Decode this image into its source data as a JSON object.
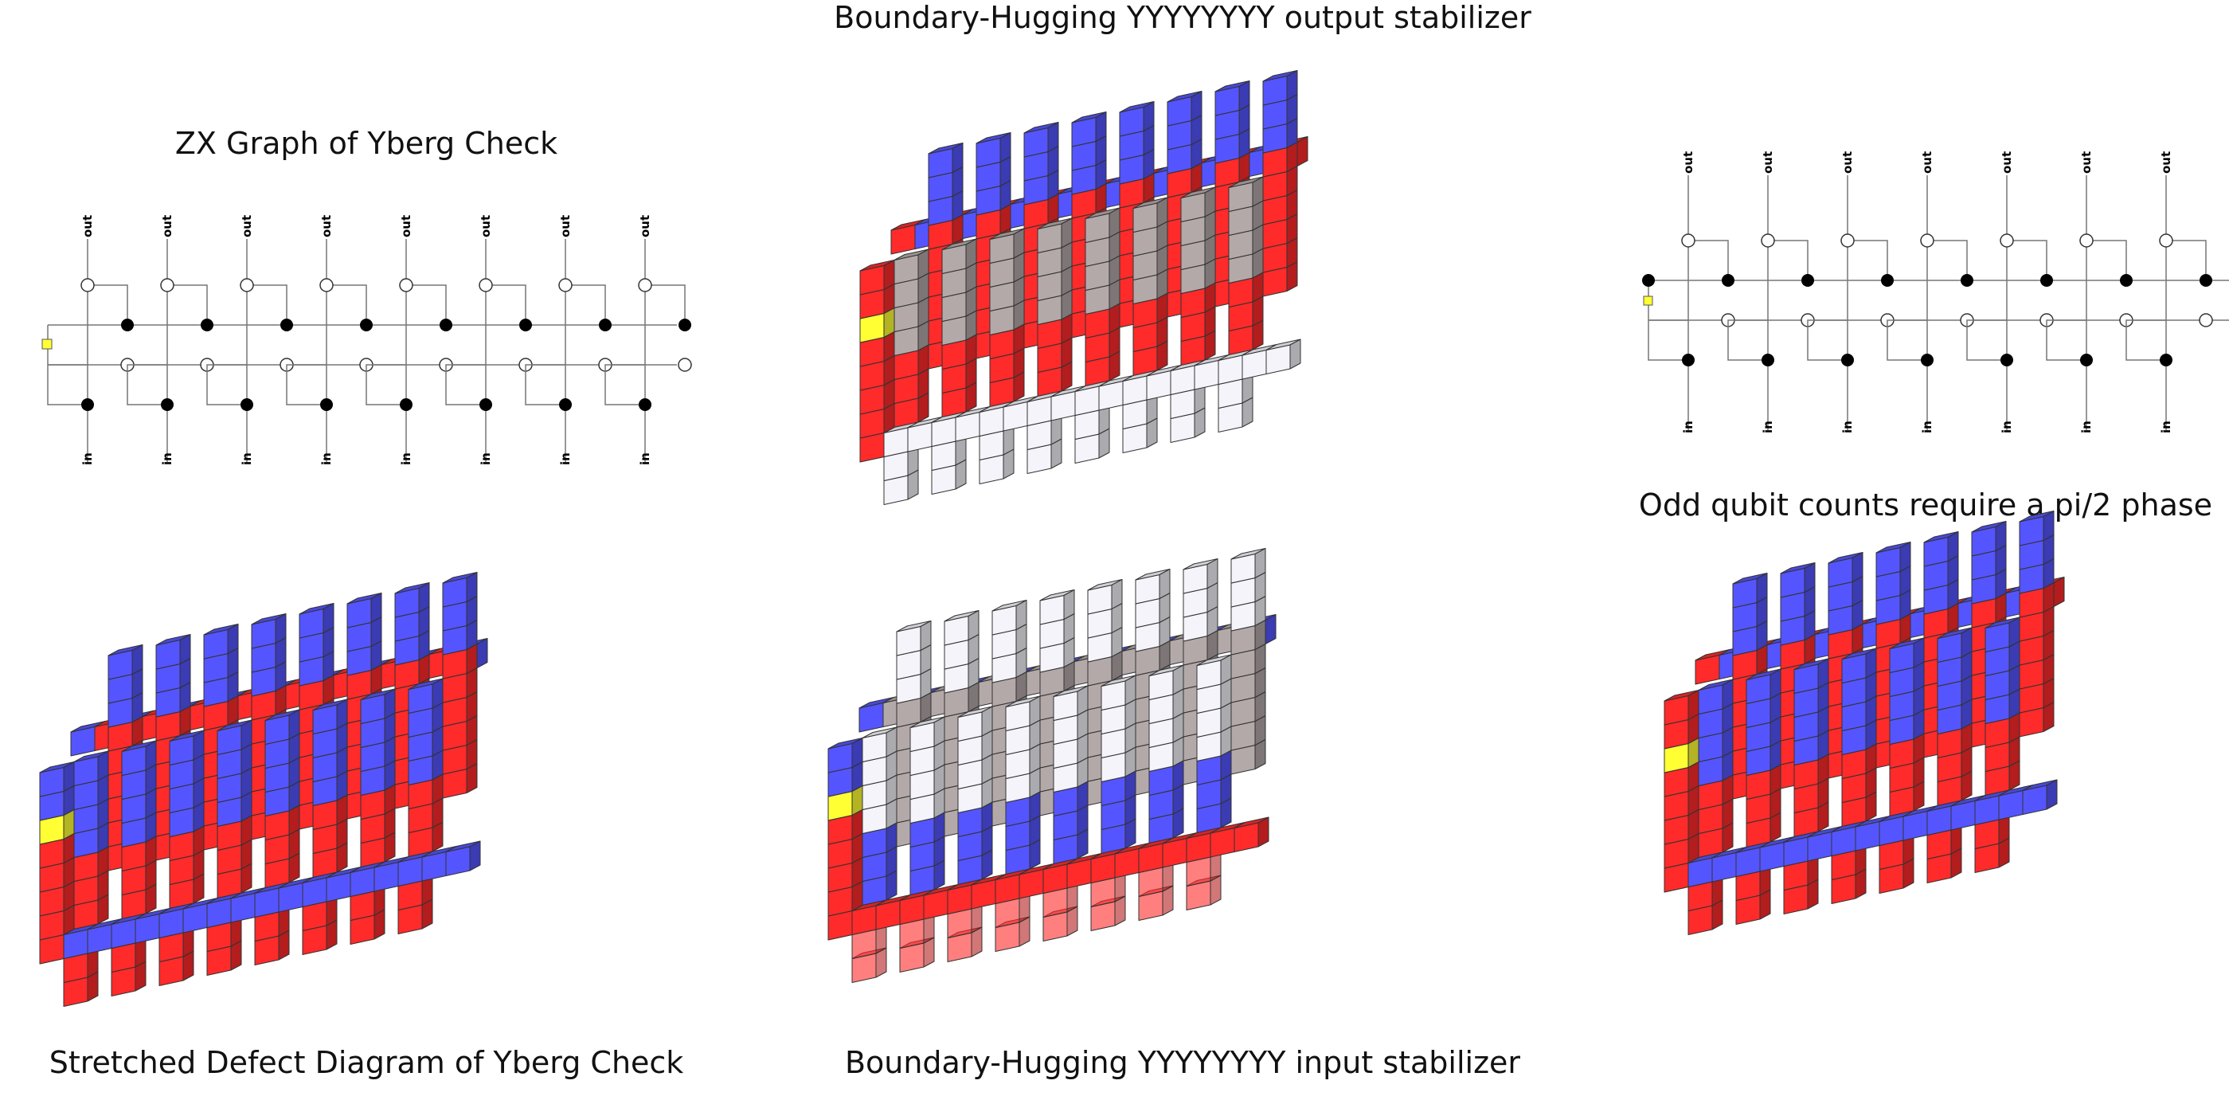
{
  "titles": {
    "zx_graph": "ZX Graph of Yberg Check",
    "output_stabilizer": "Boundary-Hugging YYYYYYYY output stabilizer",
    "odd_qubit": "Odd qubit counts require a pi/2 phase",
    "stretched_defect": "Stretched Defect Diagram of Yberg Check",
    "input_stabilizer": "Boundary-Hugging YYYYYYYY input stabilizer"
  },
  "zx_graph": {
    "output_label": "out",
    "input_label": "in",
    "columns": 8
  },
  "odd_qubit_graph": {
    "output_label": "out",
    "input_label": "in",
    "columns": 7
  },
  "colors": {
    "red": "#ff2a2a",
    "blue": "#5555ff",
    "yellow": "#ffff33",
    "gray": "#b4a9a9",
    "white": "#f4f4fa",
    "black": "#000000"
  }
}
